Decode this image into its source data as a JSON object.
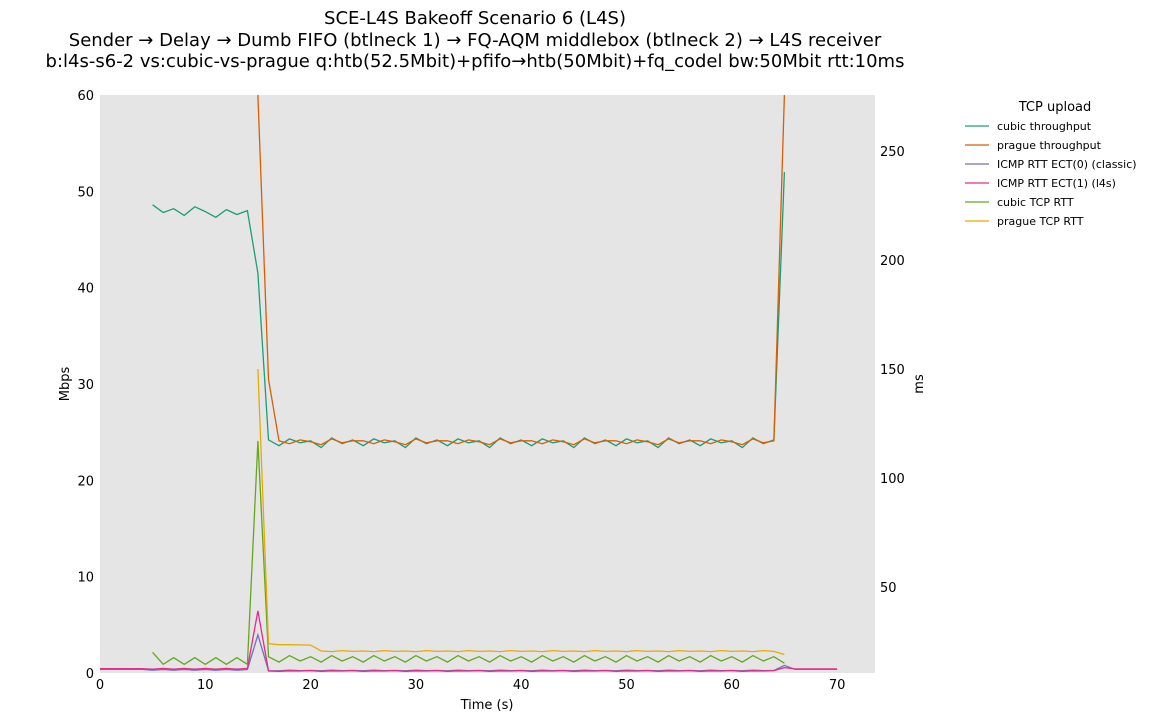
{
  "chart_data": {
    "type": "line",
    "title": [
      "SCE-L4S Bakeoff Scenario 6 (L4S)",
      "Sender → Delay → Dumb FIFO (btlneck 1) → FQ-AQM middlebox (btlneck 2) → L4S receiver",
      "b:l4s-s6-2 vs:cubic-vs-prague q:htb(52.5Mbit)+pfifo→htb(50Mbit)+fq_codel bw:50Mbit rtt:10ms"
    ],
    "x_label": "Time (s)",
    "y_label": "Mbps",
    "y2_label": "ms",
    "legend_title": "TCP upload",
    "legend": "outside-right",
    "grid": false,
    "background": "#e5e5e5",
    "xlim": [
      0,
      73.6
    ],
    "xticks": [
      0,
      10,
      20,
      30,
      40,
      50,
      60,
      70
    ],
    "ylim": [
      0,
      60
    ],
    "yticks": [
      0,
      10,
      20,
      30,
      40,
      50,
      60
    ],
    "y2lim": [
      10.5,
      275.7
    ],
    "y2ticks": [
      50,
      100,
      150,
      200,
      250
    ],
    "x": [
      0,
      1,
      2,
      3,
      4,
      5,
      6,
      7,
      8,
      9,
      10,
      11,
      12,
      13,
      14,
      15,
      16,
      17,
      18,
      19,
      20,
      21,
      22,
      23,
      24,
      25,
      26,
      27,
      28,
      29,
      30,
      31,
      32,
      33,
      34,
      35,
      36,
      37,
      38,
      39,
      40,
      41,
      42,
      43,
      44,
      45,
      46,
      47,
      48,
      49,
      50,
      51,
      52,
      53,
      54,
      55,
      56,
      57,
      58,
      59,
      60,
      61,
      62,
      63,
      64,
      65,
      66,
      67,
      68,
      69,
      70
    ],
    "series": [
      {
        "name": "cubic throughput",
        "color": "#1b9e77",
        "axis": "y",
        "values": [
          null,
          null,
          null,
          null,
          null,
          48.6,
          47.8,
          48.2,
          47.5,
          48.4,
          47.9,
          47.3,
          48.1,
          47.6,
          48.0,
          41.5,
          24.2,
          23.6,
          24.3,
          23.9,
          24.1,
          23.4,
          24.4,
          23.8,
          24.2,
          23.6,
          24.3,
          23.9,
          24.1,
          23.4,
          24.4,
          23.8,
          24.2,
          23.6,
          24.3,
          23.9,
          24.1,
          23.4,
          24.4,
          23.8,
          24.2,
          23.6,
          24.3,
          23.9,
          24.1,
          23.4,
          24.4,
          23.8,
          24.2,
          23.6,
          24.3,
          23.9,
          24.1,
          23.4,
          24.4,
          23.8,
          24.2,
          23.6,
          24.3,
          23.9,
          24.1,
          23.4,
          24.4,
          23.8,
          24.2,
          52,
          null,
          null,
          null,
          null,
          null
        ]
      },
      {
        "name": "prague throughput",
        "color": "#d95f02",
        "axis": "y",
        "values": [
          null,
          null,
          null,
          null,
          null,
          null,
          null,
          null,
          null,
          null,
          null,
          null,
          null,
          null,
          null,
          60,
          30.5,
          24.1,
          23.8,
          24.2,
          24.0,
          23.7,
          24.3,
          23.9,
          24.1,
          24.1,
          23.8,
          24.2,
          24.0,
          23.7,
          24.3,
          23.9,
          24.1,
          24.1,
          23.8,
          24.2,
          24.0,
          23.7,
          24.3,
          23.9,
          24.1,
          24.1,
          23.8,
          24.2,
          24.0,
          23.7,
          24.3,
          23.9,
          24.1,
          24.1,
          23.8,
          24.2,
          24.0,
          23.7,
          24.3,
          23.9,
          24.1,
          24.1,
          23.8,
          24.2,
          24.0,
          23.7,
          24.3,
          23.9,
          24.1,
          60,
          null,
          null,
          null,
          null,
          null
        ]
      },
      {
        "name": "ICMP RTT ECT(0) (classic)",
        "color": "#7570b3",
        "axis": "y2",
        "values": [
          12.2,
          12.2,
          12.2,
          12.2,
          12.2,
          11.8,
          12.1,
          11.8,
          12.1,
          11.8,
          12.1,
          11.8,
          12.1,
          11.8,
          12.1,
          28,
          11.6,
          11.5,
          11.8,
          11.6,
          11.7,
          11.5,
          11.8,
          11.6,
          11.7,
          11.5,
          11.8,
          11.6,
          11.7,
          11.5,
          11.8,
          11.6,
          11.7,
          11.5,
          11.8,
          11.6,
          11.7,
          11.5,
          11.8,
          11.6,
          11.7,
          11.5,
          11.8,
          11.6,
          11.7,
          11.5,
          11.8,
          11.6,
          11.7,
          11.5,
          11.8,
          11.6,
          11.7,
          11.5,
          11.8,
          11.6,
          11.7,
          11.5,
          11.8,
          11.6,
          11.7,
          11.5,
          11.8,
          11.6,
          11.7,
          14,
          12.2,
          12.2,
          12.2,
          12.2,
          12.2
        ]
      },
      {
        "name": "ICMP RTT ECT(1) (l4s)",
        "color": "#e7298a",
        "axis": "y2",
        "values": [
          12.5,
          12.5,
          12.5,
          12.5,
          12.5,
          12.3,
          12.6,
          12.3,
          12.6,
          12.3,
          12.6,
          12.3,
          12.6,
          12.3,
          12.6,
          39,
          11.4,
          11.3,
          11.5,
          11.4,
          11.6,
          11.3,
          11.5,
          11.4,
          11.6,
          11.3,
          11.5,
          11.4,
          11.6,
          11.3,
          11.5,
          11.4,
          11.6,
          11.3,
          11.5,
          11.4,
          11.6,
          11.3,
          11.5,
          11.4,
          11.6,
          11.3,
          11.5,
          11.4,
          11.6,
          11.3,
          11.5,
          11.4,
          11.6,
          11.3,
          11.5,
          11.4,
          11.6,
          11.3,
          11.5,
          11.4,
          11.6,
          11.3,
          11.5,
          11.4,
          11.6,
          11.3,
          11.5,
          11.4,
          11.6,
          13,
          12.4,
          12.4,
          12.4,
          12.4,
          12.4
        ]
      },
      {
        "name": "cubic TCP RTT",
        "color": "#66a61e",
        "axis": "y2",
        "values": [
          null,
          null,
          null,
          null,
          null,
          20,
          14.5,
          17.5,
          14.5,
          17.5,
          14.5,
          17.5,
          14.5,
          17.5,
          14.5,
          117,
          18,
          15.5,
          18.5,
          16,
          18,
          15.5,
          18.5,
          16,
          18,
          15.5,
          18.5,
          16,
          18,
          15.5,
          18.5,
          16,
          18,
          15.5,
          18.5,
          16,
          18,
          15.5,
          18.5,
          16,
          18,
          15.5,
          18.5,
          16,
          18,
          15.5,
          18.5,
          16,
          18,
          15.5,
          18.5,
          16,
          18,
          15.5,
          18.5,
          16,
          18,
          15.5,
          18.5,
          16,
          18,
          15.5,
          18.5,
          16,
          18,
          15,
          null,
          null,
          null,
          null,
          null
        ]
      },
      {
        "name": "prague TCP RTT",
        "color": "#e6ab02",
        "axis": "y2",
        "values": [
          null,
          null,
          null,
          null,
          null,
          null,
          null,
          null,
          null,
          null,
          null,
          null,
          null,
          null,
          null,
          150,
          24,
          23.5,
          23.5,
          23.4,
          23.3,
          20.6,
          20.3,
          20.8,
          20.4,
          20.6,
          20.3,
          20.8,
          20.4,
          20.6,
          20.3,
          20.8,
          20.4,
          20.6,
          20.3,
          20.8,
          20.4,
          20.6,
          20.3,
          20.8,
          20.4,
          20.6,
          20.3,
          20.8,
          20.4,
          20.6,
          20.3,
          20.8,
          20.4,
          20.6,
          20.3,
          20.8,
          20.4,
          20.6,
          20.3,
          20.8,
          20.4,
          20.6,
          20.3,
          20.8,
          20.4,
          20.6,
          20.3,
          20.8,
          20.4,
          19,
          null,
          null,
          null,
          null,
          null
        ]
      }
    ]
  }
}
